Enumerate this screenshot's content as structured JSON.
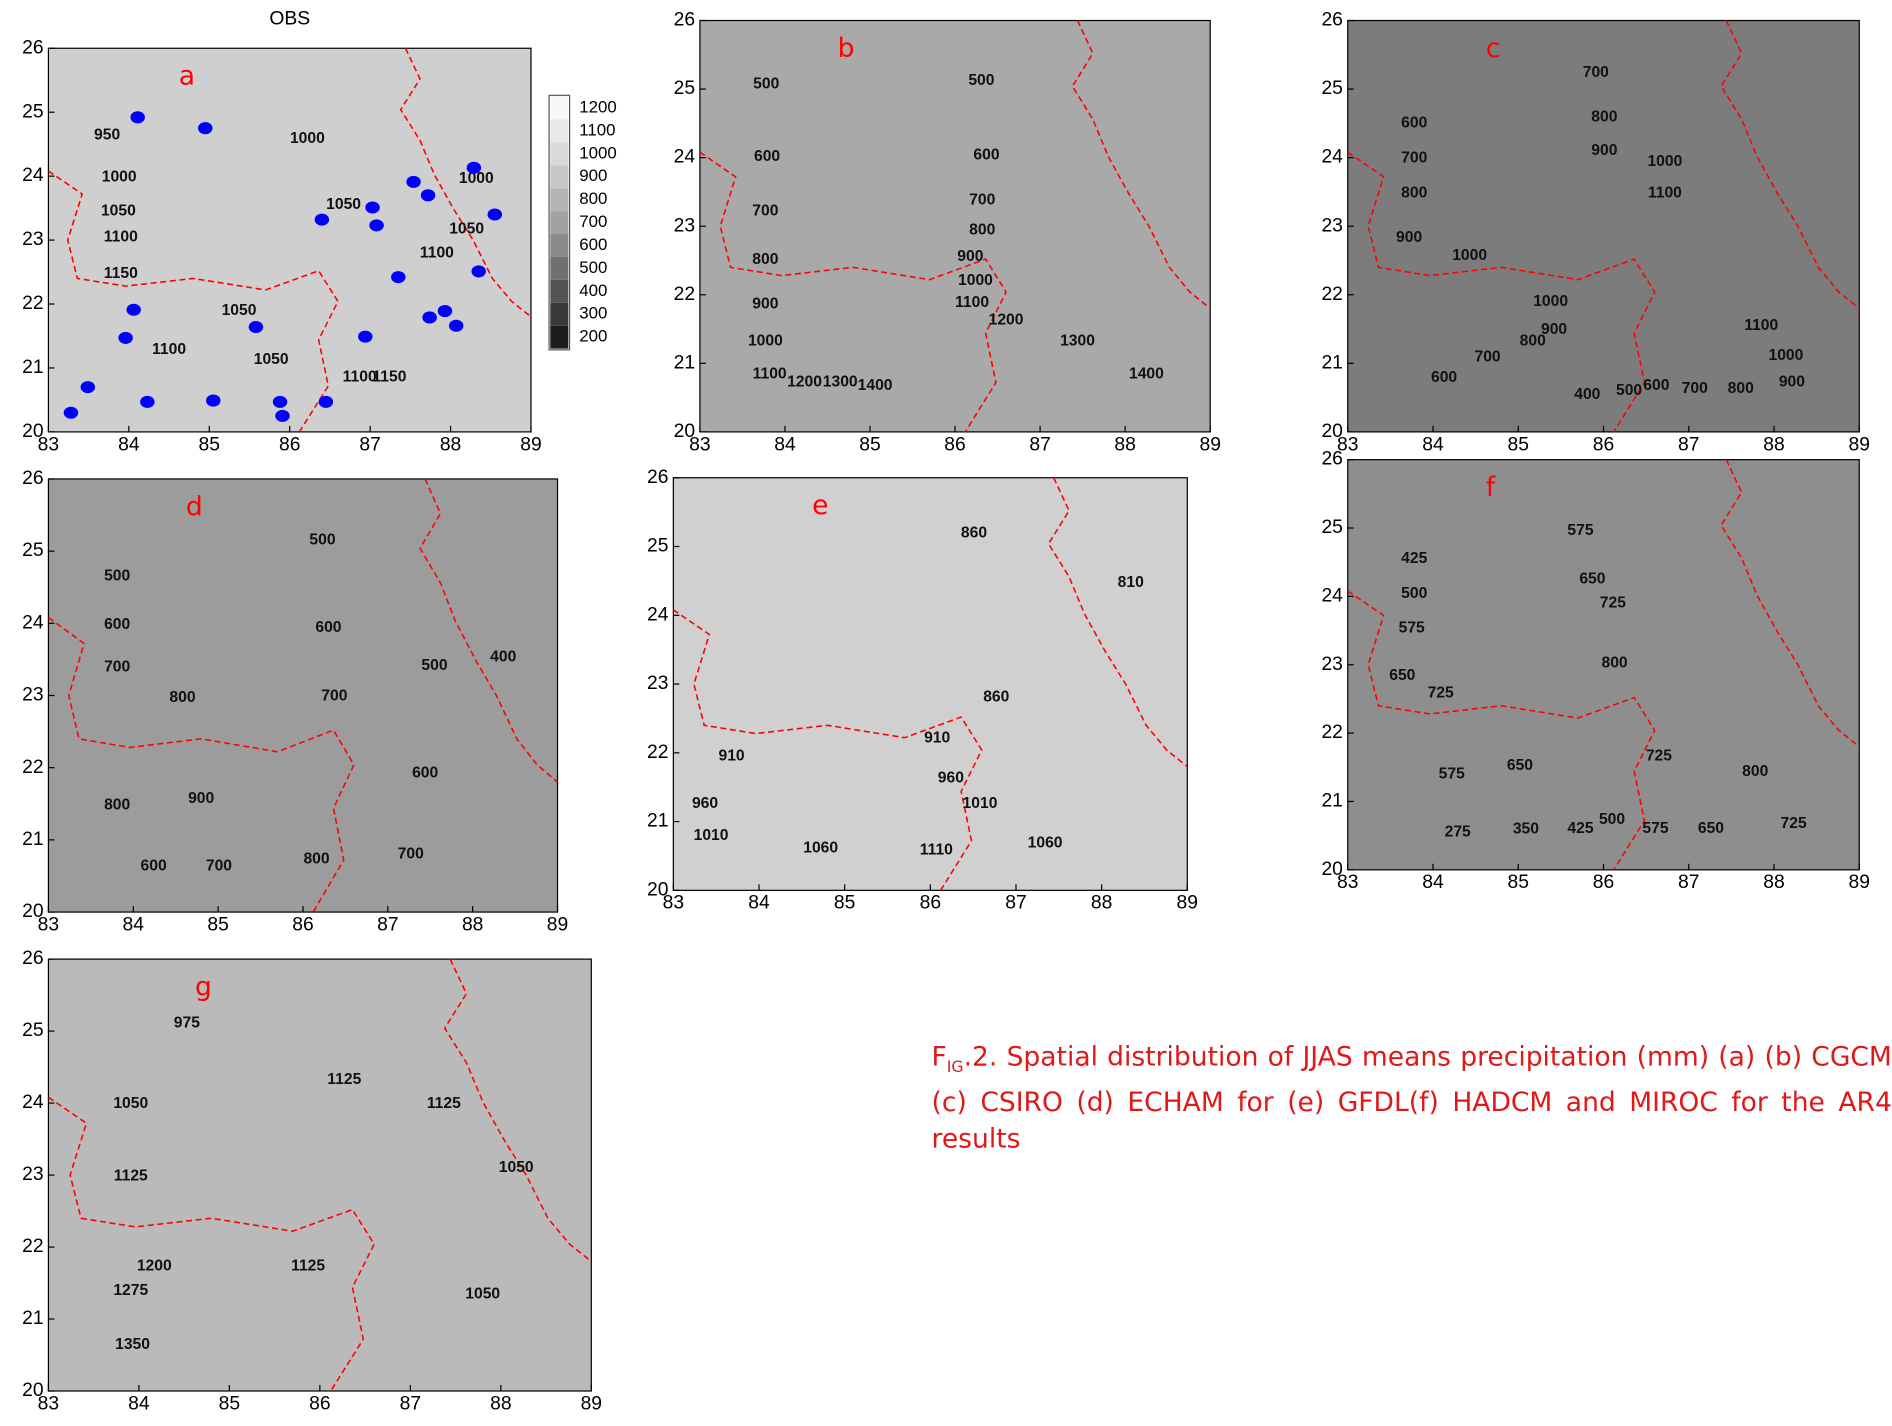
{
  "chart_data": [
    {
      "type": "contour",
      "title": "OBS",
      "label": "a",
      "xlim": [
        83,
        89
      ],
      "ylim": [
        20,
        26
      ],
      "xticks": [
        83,
        84,
        85,
        86,
        87,
        88,
        89
      ],
      "yticks": [
        20,
        21,
        22,
        23,
        24,
        25,
        26
      ],
      "fill": "#cfcfcf",
      "label_color": "#ff0000",
      "contour_labels": [
        {
          "value": 950,
          "lon": 83.73,
          "lat": 24.64
        },
        {
          "value": 1000,
          "lon": 83.88,
          "lat": 23.98
        },
        {
          "value": 1050,
          "lon": 83.87,
          "lat": 23.45
        },
        {
          "value": 1100,
          "lon": 83.9,
          "lat": 23.04
        },
        {
          "value": 1150,
          "lon": 83.9,
          "lat": 22.47
        },
        {
          "value": 1100,
          "lon": 84.5,
          "lat": 21.28
        },
        {
          "value": 1050,
          "lon": 85.37,
          "lat": 21.89
        },
        {
          "value": 1050,
          "lon": 85.77,
          "lat": 21.13
        },
        {
          "value": 1000,
          "lon": 86.22,
          "lat": 24.58
        },
        {
          "value": 1050,
          "lon": 86.67,
          "lat": 23.55
        },
        {
          "value": 1000,
          "lon": 88.32,
          "lat": 23.96
        },
        {
          "value": 1050,
          "lon": 88.2,
          "lat": 23.17
        },
        {
          "value": 1100,
          "lon": 87.83,
          "lat": 22.79
        },
        {
          "value": 1150,
          "lon": 87.24,
          "lat": 20.85
        },
        {
          "value": 1100,
          "lon": 86.87,
          "lat": 20.85
        }
      ],
      "stations": {
        "color": "#0000ff",
        "lon": [
          84.11,
          84.95,
          84.06,
          83.96,
          83.49,
          83.28,
          84.23,
          85.05,
          85.58,
          85.88,
          85.91,
          86.45,
          86.4,
          87.03,
          87.08,
          86.94,
          87.35,
          87.54,
          87.72,
          87.74,
          87.93,
          88.07,
          88.29,
          88.35,
          88.55
        ],
        "lat": [
          24.92,
          24.75,
          21.91,
          21.47,
          20.7,
          20.3,
          20.47,
          20.49,
          21.64,
          20.47,
          20.25,
          20.47,
          23.32,
          23.51,
          23.23,
          21.49,
          22.42,
          23.91,
          23.7,
          21.79,
          21.89,
          21.66,
          24.13,
          22.51,
          23.4
        ]
      },
      "colorbar": {
        "levels": [
          1200,
          1100,
          1000,
          900,
          800,
          700,
          600,
          500,
          400,
          300,
          200
        ],
        "colors": [
          "#f7f7f7",
          "#e8e8e8",
          "#d9d9d9",
          "#c8c8c8",
          "#b5b5b5",
          "#a2a2a2",
          "#8a8a8a",
          "#707070",
          "#545454",
          "#383838",
          "#1c1c1c"
        ]
      }
    },
    {
      "type": "contour",
      "label": "b",
      "xlim": [
        83,
        89
      ],
      "ylim": [
        20,
        26
      ],
      "xticks": [
        83,
        84,
        85,
        86,
        87,
        88,
        89
      ],
      "yticks": [
        20,
        21,
        22,
        23,
        24,
        25,
        26
      ],
      "fill": "#a9a9a9",
      "label_color": "#ff0000",
      "contour_labels": [
        {
          "value": 500,
          "lon": 83.78,
          "lat": 25.07
        },
        {
          "value": 500,
          "lon": 86.31,
          "lat": 25.12
        },
        {
          "value": 600,
          "lon": 83.79,
          "lat": 24.01
        },
        {
          "value": 600,
          "lon": 86.37,
          "lat": 24.03
        },
        {
          "value": 700,
          "lon": 83.77,
          "lat": 23.22
        },
        {
          "value": 700,
          "lon": 86.32,
          "lat": 23.38
        },
        {
          "value": 800,
          "lon": 83.77,
          "lat": 22.51
        },
        {
          "value": 800,
          "lon": 86.32,
          "lat": 22.94
        },
        {
          "value": 900,
          "lon": 83.77,
          "lat": 21.86
        },
        {
          "value": 900,
          "lon": 86.18,
          "lat": 22.55
        },
        {
          "value": 1000,
          "lon": 83.77,
          "lat": 21.32
        },
        {
          "value": 1000,
          "lon": 86.24,
          "lat": 22.2
        },
        {
          "value": 1100,
          "lon": 83.82,
          "lat": 20.84
        },
        {
          "value": 1100,
          "lon": 86.2,
          "lat": 21.88
        },
        {
          "value": 1200,
          "lon": 84.23,
          "lat": 20.72
        },
        {
          "value": 1200,
          "lon": 86.6,
          "lat": 21.63
        },
        {
          "value": 1300,
          "lon": 84.65,
          "lat": 20.72
        },
        {
          "value": 1300,
          "lon": 87.44,
          "lat": 21.32
        },
        {
          "value": 1400,
          "lon": 85.06,
          "lat": 20.67
        },
        {
          "value": 1400,
          "lon": 88.25,
          "lat": 20.84
        }
      ]
    },
    {
      "type": "contour",
      "label": "c",
      "xlim": [
        83,
        89
      ],
      "ylim": [
        20,
        26
      ],
      "xticks": [
        83,
        84,
        85,
        86,
        87,
        88,
        89
      ],
      "yticks": [
        20,
        21,
        22,
        23,
        24,
        25,
        26
      ],
      "fill": "#7c7c7c",
      "label_color": "#ff0000",
      "contour_labels": [
        {
          "value": 700,
          "lon": 85.91,
          "lat": 25.24
        },
        {
          "value": 600,
          "lon": 83.78,
          "lat": 24.5
        },
        {
          "value": 700,
          "lon": 83.78,
          "lat": 23.99
        },
        {
          "value": 800,
          "lon": 83.78,
          "lat": 23.48
        },
        {
          "value": 900,
          "lon": 83.72,
          "lat": 22.83
        },
        {
          "value": 1000,
          "lon": 84.43,
          "lat": 22.57
        },
        {
          "value": 800,
          "lon": 86.01,
          "lat": 24.59
        },
        {
          "value": 900,
          "lon": 86.01,
          "lat": 24.1
        },
        {
          "value": 1000,
          "lon": 86.72,
          "lat": 23.94
        },
        {
          "value": 1100,
          "lon": 86.72,
          "lat": 23.48
        },
        {
          "value": 1000,
          "lon": 85.38,
          "lat": 21.9
        },
        {
          "value": 900,
          "lon": 85.42,
          "lat": 21.49
        },
        {
          "value": 800,
          "lon": 85.17,
          "lat": 21.32
        },
        {
          "value": 700,
          "lon": 84.64,
          "lat": 21.09
        },
        {
          "value": 600,
          "lon": 84.13,
          "lat": 20.79
        },
        {
          "value": 400,
          "lon": 85.81,
          "lat": 20.54
        },
        {
          "value": 500,
          "lon": 86.3,
          "lat": 20.6
        },
        {
          "value": 600,
          "lon": 86.62,
          "lat": 20.67
        },
        {
          "value": 700,
          "lon": 87.07,
          "lat": 20.63
        },
        {
          "value": 800,
          "lon": 87.61,
          "lat": 20.63
        },
        {
          "value": 900,
          "lon": 88.21,
          "lat": 20.72
        },
        {
          "value": 1000,
          "lon": 88.14,
          "lat": 21.11
        },
        {
          "value": 1100,
          "lon": 87.85,
          "lat": 21.55
        }
      ]
    },
    {
      "type": "contour",
      "label": "d",
      "xlim": [
        83,
        89
      ],
      "ylim": [
        20,
        26
      ],
      "xticks": [
        83,
        84,
        85,
        86,
        87,
        88,
        89
      ],
      "yticks": [
        20,
        21,
        22,
        23,
        24,
        25,
        26
      ],
      "fill": "#9c9c9c",
      "label_color": "#ff0000",
      "contour_labels": [
        {
          "value": 500,
          "lon": 83.81,
          "lat": 24.65
        },
        {
          "value": 500,
          "lon": 86.23,
          "lat": 25.15
        },
        {
          "value": 600,
          "lon": 83.81,
          "lat": 23.98
        },
        {
          "value": 600,
          "lon": 86.3,
          "lat": 23.94
        },
        {
          "value": 700,
          "lon": 83.81,
          "lat": 23.39
        },
        {
          "value": 700,
          "lon": 86.37,
          "lat": 22.99
        },
        {
          "value": 800,
          "lon": 84.58,
          "lat": 22.97
        },
        {
          "value": 900,
          "lon": 84.8,
          "lat": 21.57
        },
        {
          "value": 800,
          "lon": 83.81,
          "lat": 21.48
        },
        {
          "value": 800,
          "lon": 86.16,
          "lat": 20.73
        },
        {
          "value": 700,
          "lon": 85.01,
          "lat": 20.63
        },
        {
          "value": 600,
          "lon": 84.24,
          "lat": 20.63
        },
        {
          "value": 700,
          "lon": 87.27,
          "lat": 20.8
        },
        {
          "value": 600,
          "lon": 87.44,
          "lat": 21.92
        },
        {
          "value": 500,
          "lon": 87.55,
          "lat": 23.41
        },
        {
          "value": 400,
          "lon": 88.36,
          "lat": 23.53
        }
      ]
    },
    {
      "type": "contour",
      "label": "e",
      "xlim": [
        83,
        89
      ],
      "ylim": [
        20,
        26
      ],
      "xticks": [
        83,
        84,
        85,
        86,
        87,
        88,
        89
      ],
      "yticks": [
        20,
        21,
        22,
        23,
        24,
        25,
        26
      ],
      "fill": "#d0d0d0",
      "label_color": "#ff0000",
      "contour_labels": [
        {
          "value": 860,
          "lon": 86.51,
          "lat": 25.19
        },
        {
          "value": 810,
          "lon": 88.34,
          "lat": 24.47
        },
        {
          "value": 860,
          "lon": 86.77,
          "lat": 22.81
        },
        {
          "value": 910,
          "lon": 86.08,
          "lat": 22.21
        },
        {
          "value": 910,
          "lon": 83.68,
          "lat": 21.95
        },
        {
          "value": 960,
          "lon": 83.37,
          "lat": 21.26
        },
        {
          "value": 960,
          "lon": 86.24,
          "lat": 21.63
        },
        {
          "value": 1010,
          "lon": 83.44,
          "lat": 20.79
        },
        {
          "value": 1010,
          "lon": 86.58,
          "lat": 21.26
        },
        {
          "value": 1060,
          "lon": 84.72,
          "lat": 20.61
        },
        {
          "value": 1060,
          "lon": 87.34,
          "lat": 20.68
        },
        {
          "value": 1110,
          "lon": 86.07,
          "lat": 20.58
        }
      ]
    },
    {
      "type": "contour",
      "label": "f",
      "xlim": [
        83,
        89
      ],
      "ylim": [
        20,
        26
      ],
      "xticks": [
        83,
        84,
        85,
        86,
        87,
        88,
        89
      ],
      "yticks": [
        20,
        21,
        22,
        23,
        24,
        25,
        26
      ],
      "fill": "#8e8e8e",
      "label_color": "#ff0000",
      "contour_labels": [
        {
          "value": 425,
          "lon": 83.78,
          "lat": 24.55
        },
        {
          "value": 500,
          "lon": 83.78,
          "lat": 24.04
        },
        {
          "value": 575,
          "lon": 83.75,
          "lat": 23.53
        },
        {
          "value": 650,
          "lon": 83.64,
          "lat": 22.84
        },
        {
          "value": 725,
          "lon": 84.09,
          "lat": 22.58
        },
        {
          "value": 575,
          "lon": 85.73,
          "lat": 24.96
        },
        {
          "value": 650,
          "lon": 85.87,
          "lat": 24.25
        },
        {
          "value": 725,
          "lon": 86.11,
          "lat": 23.9
        },
        {
          "value": 800,
          "lon": 86.13,
          "lat": 23.02
        },
        {
          "value": 650,
          "lon": 85.02,
          "lat": 21.52
        },
        {
          "value": 575,
          "lon": 84.22,
          "lat": 21.4
        },
        {
          "value": 725,
          "lon": 86.65,
          "lat": 21.66
        },
        {
          "value": 800,
          "lon": 87.78,
          "lat": 21.43
        },
        {
          "value": 275,
          "lon": 84.29,
          "lat": 20.55
        },
        {
          "value": 350,
          "lon": 85.09,
          "lat": 20.59
        },
        {
          "value": 425,
          "lon": 85.73,
          "lat": 20.6
        },
        {
          "value": 500,
          "lon": 86.1,
          "lat": 20.73
        },
        {
          "value": 575,
          "lon": 86.61,
          "lat": 20.6
        },
        {
          "value": 650,
          "lon": 87.26,
          "lat": 20.6
        },
        {
          "value": 725,
          "lon": 88.23,
          "lat": 20.67
        }
      ]
    },
    {
      "type": "contour",
      "label": "g",
      "xlim": [
        83,
        89
      ],
      "ylim": [
        20,
        26
      ],
      "xticks": [
        83,
        84,
        85,
        86,
        87,
        88,
        89
      ],
      "yticks": [
        20,
        21,
        22,
        23,
        24,
        25,
        26
      ],
      "fill": "#bababa",
      "label_color": "#ff0000",
      "contour_labels": [
        {
          "value": 975,
          "lon": 84.53,
          "lat": 25.11
        },
        {
          "value": 1050,
          "lon": 83.91,
          "lat": 23.99
        },
        {
          "value": 1125,
          "lon": 83.91,
          "lat": 22.98
        },
        {
          "value": 1125,
          "lon": 86.27,
          "lat": 24.32
        },
        {
          "value": 1125,
          "lon": 87.37,
          "lat": 23.99
        },
        {
          "value": 1050,
          "lon": 88.17,
          "lat": 23.1
        },
        {
          "value": 1050,
          "lon": 87.8,
          "lat": 21.34
        },
        {
          "value": 1200,
          "lon": 84.17,
          "lat": 21.73
        },
        {
          "value": 1275,
          "lon": 83.91,
          "lat": 21.39
        },
        {
          "value": 1350,
          "lon": 83.93,
          "lat": 20.64
        },
        {
          "value": 1125,
          "lon": 85.87,
          "lat": 21.73
        }
      ]
    }
  ],
  "caption": {
    "prefix": "F",
    "sub": "IG",
    "text": ".2. Spatial distribution of JJAS means precipitation (mm) (a) (b) CGCM (c) CSIRO (d) ECHAM for (e) GFDL(f) HADCM and MIROC for the AR4 results",
    "color": "#e01818"
  }
}
